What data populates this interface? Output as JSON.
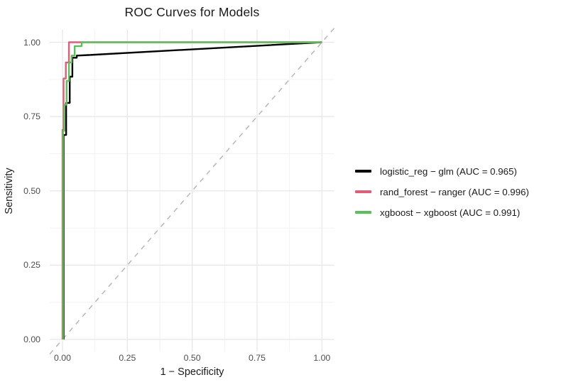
{
  "chart_data": {
    "type": "line",
    "subtype": "roc-step-curves",
    "title": "ROC Curves for Models",
    "xlabel": "1 − Specificity",
    "ylabel": "Sensitivity",
    "xlim": [
      0,
      1
    ],
    "ylim": [
      0,
      1
    ],
    "grid": true,
    "legend_position": "right",
    "panel_background": "#FFFFFF",
    "grid_major_color": "#E6E6E6",
    "grid_minor_color": "#F2F2F2",
    "tick_values": [
      0,
      0.25,
      0.5,
      0.75,
      1.0
    ],
    "minor_tick_values": [
      0.125,
      0.375,
      0.625,
      0.875
    ],
    "x_ticks": [
      "0.00",
      "0.25",
      "0.50",
      "0.75",
      "1.00"
    ],
    "y_ticks": [
      "0.00",
      "0.25",
      "0.50",
      "0.75",
      "1.00"
    ],
    "reference_line": {
      "description": "diagonal chance line y = x",
      "style": "dashed",
      "color": "#BBBBBB"
    },
    "series": [
      {
        "name": "logistic_reg − glm (AUC = 0.965)",
        "model": "logistic_reg",
        "engine": "glm",
        "auc": 0.965,
        "color": "#000000",
        "points": [
          [
            0.004,
            0
          ],
          [
            0.004,
            0.688
          ],
          [
            0.014,
            0.688
          ],
          [
            0.014,
            0.796
          ],
          [
            0.028,
            0.796
          ],
          [
            0.028,
            0.884
          ],
          [
            0.038,
            0.884
          ],
          [
            0.038,
            0.948
          ],
          [
            0.055,
            0.948
          ],
          [
            0.055,
            0.955
          ],
          [
            0.1,
            0.957
          ],
          [
            1.0,
            1.0
          ]
        ]
      },
      {
        "name": "rand_forest − ranger (AUC = 0.996)",
        "model": "rand_forest",
        "engine": "ranger",
        "auc": 0.996,
        "color": "#E25C76",
        "points": [
          [
            0.0,
            0
          ],
          [
            0.0,
            0.705
          ],
          [
            0.004,
            0.705
          ],
          [
            0.004,
            0.878
          ],
          [
            0.013,
            0.878
          ],
          [
            0.013,
            0.932
          ],
          [
            0.025,
            0.932
          ],
          [
            0.025,
            1.0
          ],
          [
            1.0,
            1.0
          ]
        ]
      },
      {
        "name": "xgboost − xgboost (AUC = 0.991)",
        "model": "xgboost",
        "engine": "xgboost",
        "auc": 0.991,
        "color": "#58C158",
        "points": [
          [
            0.002,
            0
          ],
          [
            0.002,
            0.702
          ],
          [
            0.007,
            0.702
          ],
          [
            0.007,
            0.79
          ],
          [
            0.016,
            0.79
          ],
          [
            0.016,
            0.87
          ],
          [
            0.025,
            0.87
          ],
          [
            0.025,
            0.932
          ],
          [
            0.035,
            0.932
          ],
          [
            0.035,
            0.955
          ],
          [
            0.047,
            0.955
          ],
          [
            0.047,
            0.987
          ],
          [
            0.074,
            0.987
          ],
          [
            0.074,
            1.0
          ],
          [
            1.0,
            1.0
          ]
        ]
      }
    ]
  }
}
